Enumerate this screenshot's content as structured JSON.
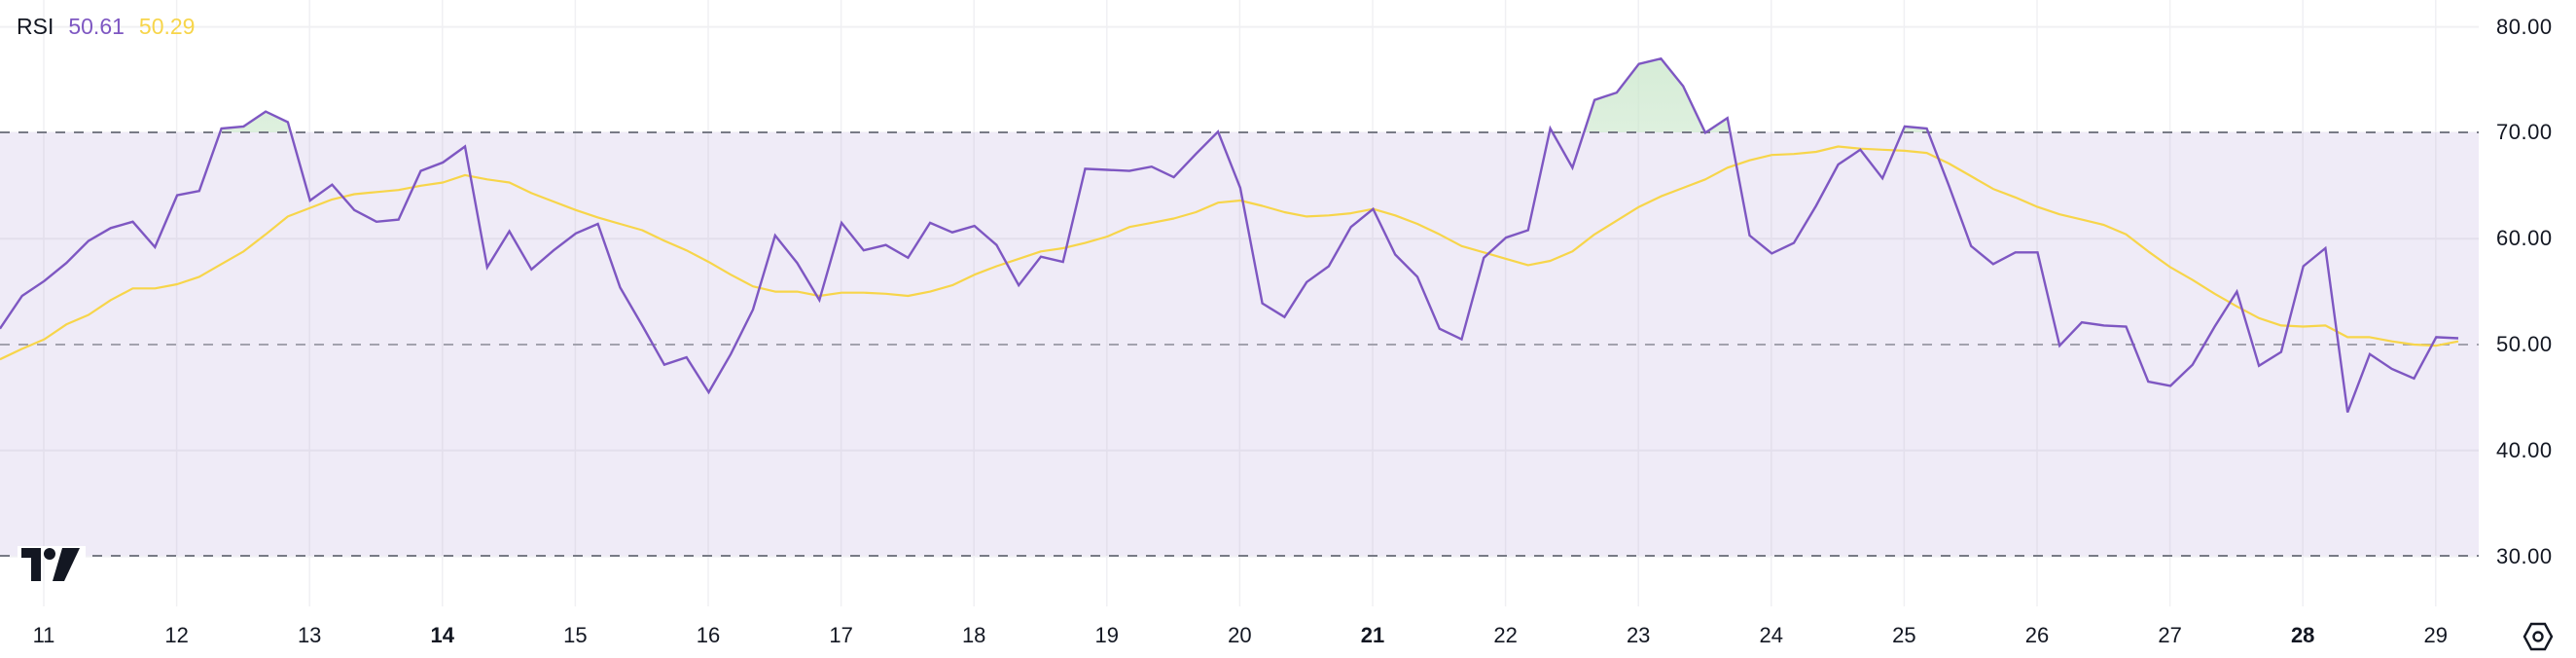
{
  "legend": {
    "title": "RSI",
    "rsi_value": "50.61",
    "ma_value": "50.29"
  },
  "colors": {
    "rsi_line": "#7E57C2",
    "ma_line": "#F7D54A",
    "band_fill": "#EFEBF7",
    "overbought_fill": "#C8E6C9",
    "grid": "#F0F0F3",
    "dashed": "#787B86",
    "text": "#131722"
  },
  "y_axis": {
    "ticks": [
      "80.00",
      "70.00",
      "60.00",
      "50.00",
      "40.00",
      "30.00"
    ]
  },
  "x_axis": {
    "ticks": [
      {
        "label": "11",
        "bold": false
      },
      {
        "label": "12",
        "bold": false
      },
      {
        "label": "13",
        "bold": false
      },
      {
        "label": "14",
        "bold": true
      },
      {
        "label": "15",
        "bold": false
      },
      {
        "label": "16",
        "bold": false
      },
      {
        "label": "17",
        "bold": false
      },
      {
        "label": "18",
        "bold": false
      },
      {
        "label": "19",
        "bold": false
      },
      {
        "label": "20",
        "bold": false
      },
      {
        "label": "21",
        "bold": true
      },
      {
        "label": "22",
        "bold": false
      },
      {
        "label": "23",
        "bold": false
      },
      {
        "label": "24",
        "bold": false
      },
      {
        "label": "25",
        "bold": false
      },
      {
        "label": "26",
        "bold": false
      },
      {
        "label": "27",
        "bold": false
      },
      {
        "label": "28",
        "bold": true
      },
      {
        "label": "29",
        "bold": false
      }
    ]
  },
  "icons": {
    "logo": "tradingview-logo",
    "settings": "hexagon-settings-icon"
  },
  "chart_data": {
    "type": "line",
    "title": "RSI",
    "xlabel": "",
    "ylabel": "",
    "ylim": [
      30,
      80
    ],
    "y_ticks": [
      80,
      70,
      60,
      50,
      40,
      30
    ],
    "x_tick_labels": [
      "11",
      "12",
      "13",
      "14",
      "15",
      "16",
      "17",
      "18",
      "19",
      "20",
      "21",
      "22",
      "23",
      "24",
      "25",
      "26",
      "27",
      "28",
      "29"
    ],
    "bands": {
      "upper": 70,
      "middle": 50,
      "lower": 30
    },
    "grid": true,
    "legend_position": "top-left",
    "points_per_day": 6,
    "first_point_day": 10.67,
    "series": [
      {
        "name": "RSI",
        "last_value": 50.61,
        "values": [
          51.5,
          54.6,
          56.0,
          57.7,
          59.8,
          61.0,
          61.6,
          59.2,
          64.1,
          64.5,
          70.4,
          70.6,
          72.0,
          71.0,
          63.6,
          65.1,
          62.7,
          61.6,
          61.8,
          66.4,
          67.2,
          68.7,
          57.3,
          60.7,
          57.1,
          58.9,
          60.5,
          61.4,
          55.4,
          51.8,
          48.1,
          48.8,
          45.5,
          49.1,
          53.3,
          60.3,
          57.7,
          54.2,
          61.5,
          58.9,
          59.4,
          58.2,
          61.5,
          60.6,
          61.2,
          59.4,
          55.6,
          58.3,
          57.8,
          66.6,
          66.5,
          66.4,
          66.8,
          65.8,
          68.0,
          70.1,
          64.8,
          53.9,
          52.6,
          55.9,
          57.4,
          61.1,
          62.8,
          58.5,
          56.4,
          51.5,
          50.5,
          58.2,
          60.1,
          60.8,
          70.4,
          66.7,
          73.1,
          73.8,
          76.5,
          77.0,
          74.4,
          70.0,
          71.4,
          60.3,
          58.6,
          59.6,
          63.1,
          67.0,
          68.4,
          65.7,
          70.6,
          70.4,
          65.0,
          59.3,
          57.6,
          58.7,
          58.7,
          49.9,
          52.1,
          51.8,
          51.7,
          46.5,
          46.1,
          48.1,
          51.7,
          55.0,
          48.0,
          49.3,
          57.4,
          59.1,
          43.6,
          49.1,
          47.7,
          46.8,
          50.7,
          50.6
        ]
      },
      {
        "name": "RSI-based MA",
        "last_value": 50.29,
        "values": [
          48.6,
          49.6,
          50.5,
          51.9,
          52.8,
          54.2,
          55.3,
          55.3,
          55.7,
          56.4,
          57.6,
          58.8,
          60.4,
          62.1,
          62.9,
          63.7,
          64.2,
          64.4,
          64.6,
          65.0,
          65.3,
          66.0,
          65.6,
          65.3,
          64.3,
          63.5,
          62.7,
          62.0,
          61.4,
          60.8,
          59.8,
          58.9,
          57.8,
          56.6,
          55.5,
          55.0,
          55.0,
          54.6,
          54.9,
          54.9,
          54.8,
          54.6,
          55.0,
          55.6,
          56.6,
          57.4,
          58.1,
          58.8,
          59.1,
          59.6,
          60.2,
          61.1,
          61.5,
          61.9,
          62.5,
          63.4,
          63.6,
          63.1,
          62.5,
          62.1,
          62.2,
          62.4,
          62.8,
          62.2,
          61.4,
          60.4,
          59.3,
          58.7,
          58.1,
          57.5,
          57.9,
          58.8,
          60.4,
          61.7,
          63.0,
          64.0,
          64.8,
          65.6,
          66.7,
          67.4,
          67.9,
          68.0,
          68.2,
          68.7,
          68.5,
          68.4,
          68.3,
          68.1,
          67.1,
          65.9,
          64.7,
          63.9,
          63.0,
          62.3,
          61.8,
          61.3,
          60.4,
          58.8,
          57.3,
          56.1,
          54.8,
          53.6,
          52.5,
          51.8,
          51.7,
          51.8,
          50.7,
          50.7,
          50.3,
          50.0,
          49.9,
          50.3
        ]
      }
    ]
  }
}
